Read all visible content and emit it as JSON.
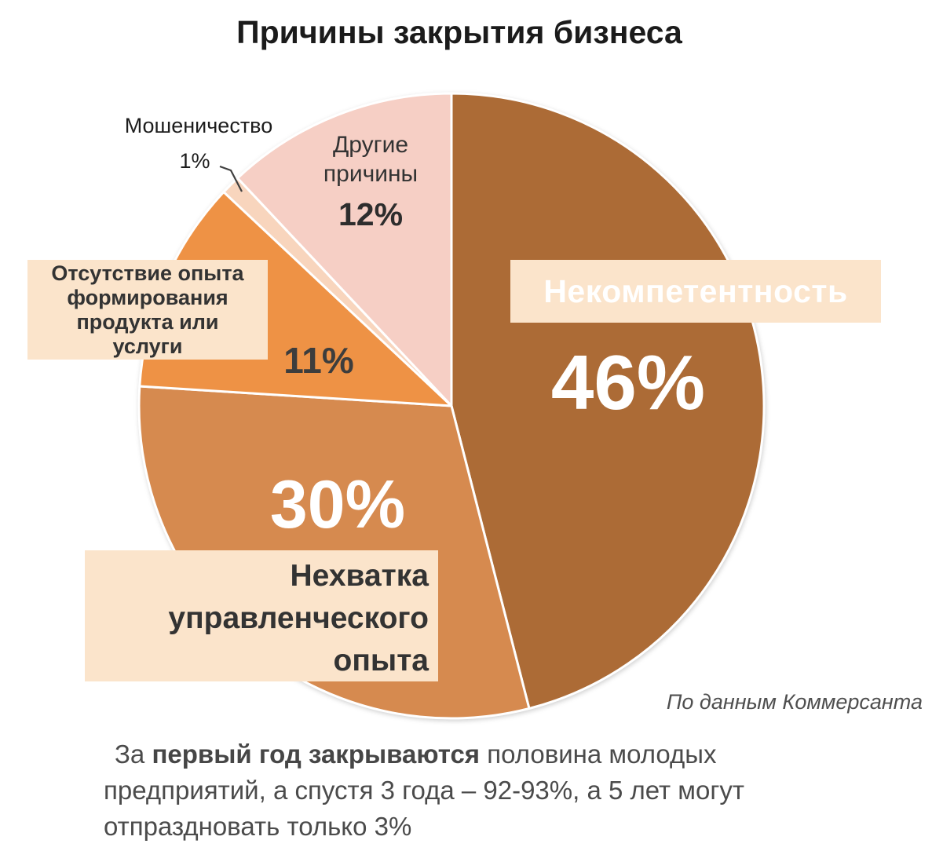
{
  "title": "Причины закрытия бизнеса",
  "source_note": "По данным Коммерсанта",
  "caption": {
    "prefix": "За ",
    "bold": "первый год закрываются",
    "rest": " половина молодых предприятий, а спустя 3 года – 92-93%, а 5 лет могут отпраздновать только 3%"
  },
  "annotations": {
    "incompetence": {
      "label": "Некомпетентность",
      "pct": "46%"
    },
    "management": {
      "line1": "Нехватка",
      "line2": "управленческого",
      "line3": "опыта",
      "pct": "30%"
    },
    "product": {
      "line1": "Отсутствие опыта",
      "line2": "формирования",
      "line3": "продукта или",
      "line4": "услуги",
      "pct": "11%"
    },
    "fraud": {
      "label": "Мошеничество",
      "pct": "1%"
    },
    "other": {
      "line1": "Другие",
      "line2": "причины",
      "pct": "12%"
    }
  },
  "colors": {
    "band": "#fbe4cb",
    "background": "#ffffff"
  },
  "chart_data": {
    "type": "pie",
    "title": "Причины закрытия бизнеса",
    "unit": "%",
    "direction": "clockwise",
    "start_angle": "top",
    "legend": "none",
    "slices": [
      {
        "label": "Некомпетентность",
        "value": 46,
        "color": "#ac6b36"
      },
      {
        "label": "Нехватка управленческого опыта",
        "value": 30,
        "color": "#d68a4f"
      },
      {
        "label": "Отсутствие опыта формирования продукта или услуги",
        "value": 11,
        "color": "#ee9245"
      },
      {
        "label": "Мошеничество",
        "value": 1,
        "color": "#f8d5bd"
      },
      {
        "label": "Другие причины",
        "value": 12,
        "color": "#f6cfc5"
      }
    ]
  }
}
